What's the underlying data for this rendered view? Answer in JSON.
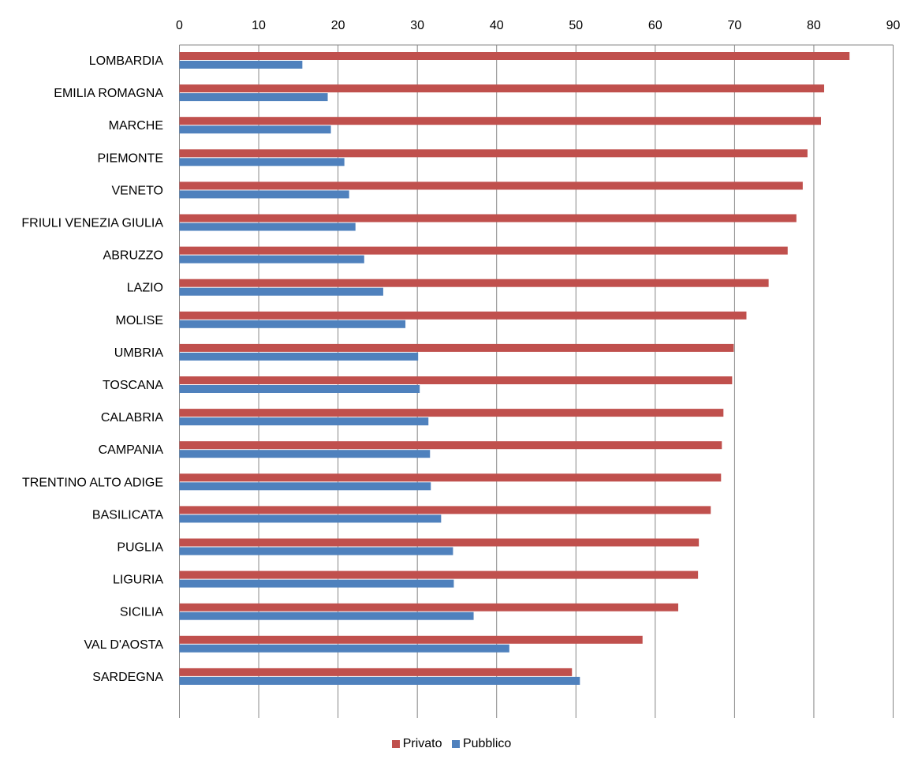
{
  "chart_data": {
    "type": "bar",
    "orientation": "horizontal",
    "title": "",
    "xlabel": "",
    "ylabel": "",
    "xlim": [
      0,
      90
    ],
    "x_ticks": [
      0,
      10,
      20,
      30,
      40,
      50,
      60,
      70,
      80,
      90
    ],
    "x_axis_position": "top",
    "grid": "vertical",
    "legend_position": "bottom",
    "categories": [
      "LOMBARDIA",
      "EMILIA ROMAGNA",
      "MARCHE",
      "PIEMONTE",
      "VENETO",
      "FRIULI VENEZIA GIULIA",
      "ABRUZZO",
      "LAZIO",
      "MOLISE",
      "UMBRIA",
      "TOSCANA",
      "CALABRIA",
      "CAMPANIA",
      "TRENTINO ALTO ADIGE",
      "BASILICATA",
      "PUGLIA",
      "LIGURIA",
      "SICILIA",
      "VAL D'AOSTA",
      "SARDEGNA"
    ],
    "series": [
      {
        "name": "Privato",
        "color": "#C0504D",
        "values": [
          84.5,
          81.3,
          80.9,
          79.2,
          78.6,
          77.8,
          76.7,
          74.3,
          71.5,
          69.9,
          69.7,
          68.6,
          68.4,
          68.3,
          67.0,
          65.5,
          65.4,
          62.9,
          58.4,
          49.5
        ]
      },
      {
        "name": "Pubblico",
        "color": "#4F81BD",
        "values": [
          15.5,
          18.7,
          19.1,
          20.8,
          21.4,
          22.2,
          23.3,
          25.7,
          28.5,
          30.1,
          30.3,
          31.4,
          31.6,
          31.7,
          33.0,
          34.5,
          34.6,
          37.1,
          41.6,
          50.5
        ]
      }
    ]
  }
}
